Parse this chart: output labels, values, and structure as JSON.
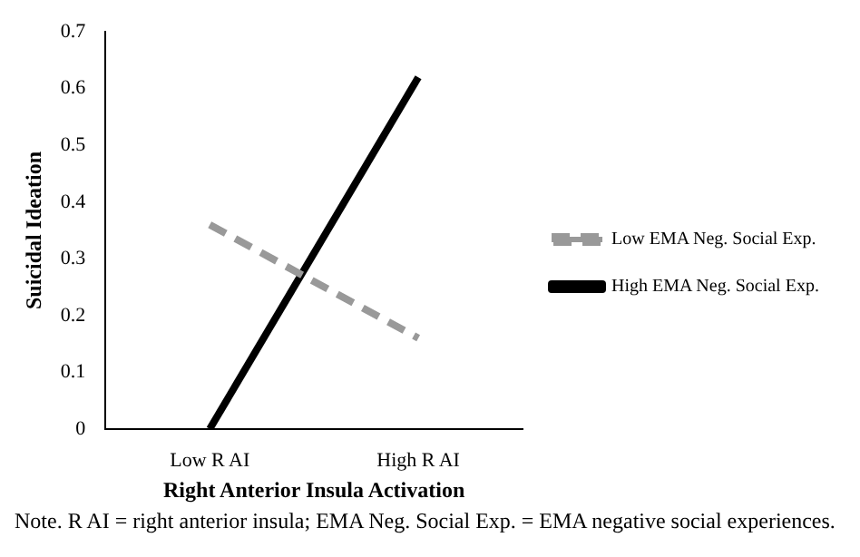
{
  "chart_data": {
    "type": "line",
    "xlabel": "Right Anterior Insula Activation",
    "ylabel": "Suicidal Ideation",
    "categories": [
      "Low R AI",
      "High R AI"
    ],
    "series": [
      {
        "name": "Low EMA Neg. Social Exp.",
        "color": "#999999",
        "values": [
          0.36,
          0.16
        ],
        "line_style": "dashed"
      },
      {
        "name": "High EMA Neg. Social Exp.",
        "color": "#000000",
        "values": [
          0,
          0.62
        ],
        "line_style": "solid"
      }
    ],
    "ylim": [
      0,
      0.7
    ],
    "yticks": [
      0,
      0.1,
      0.2,
      0.3,
      0.4,
      0.5,
      0.6,
      0.7
    ],
    "legend": "right",
    "marker": "none",
    "grid": false,
    "annotations": [
      "Note. R AI = right anterior insula; EMA Neg. Social Exp. = EMA negative social experiences."
    ]
  }
}
